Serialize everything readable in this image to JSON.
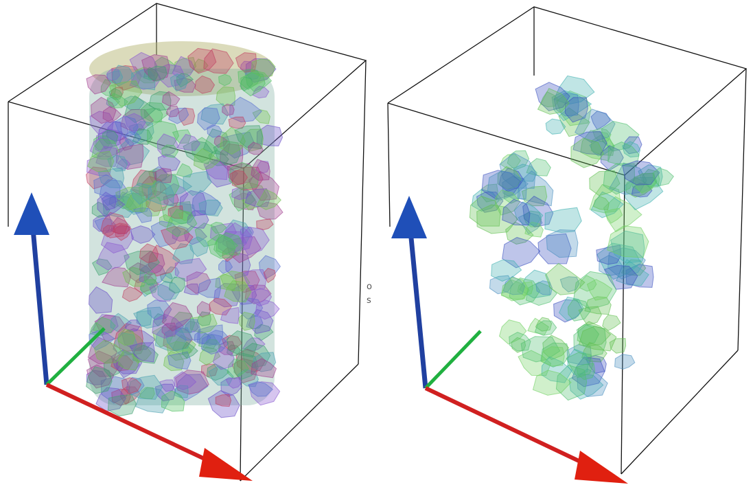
{
  "caption_fragments": [
    "o",
    "s"
  ]
}
